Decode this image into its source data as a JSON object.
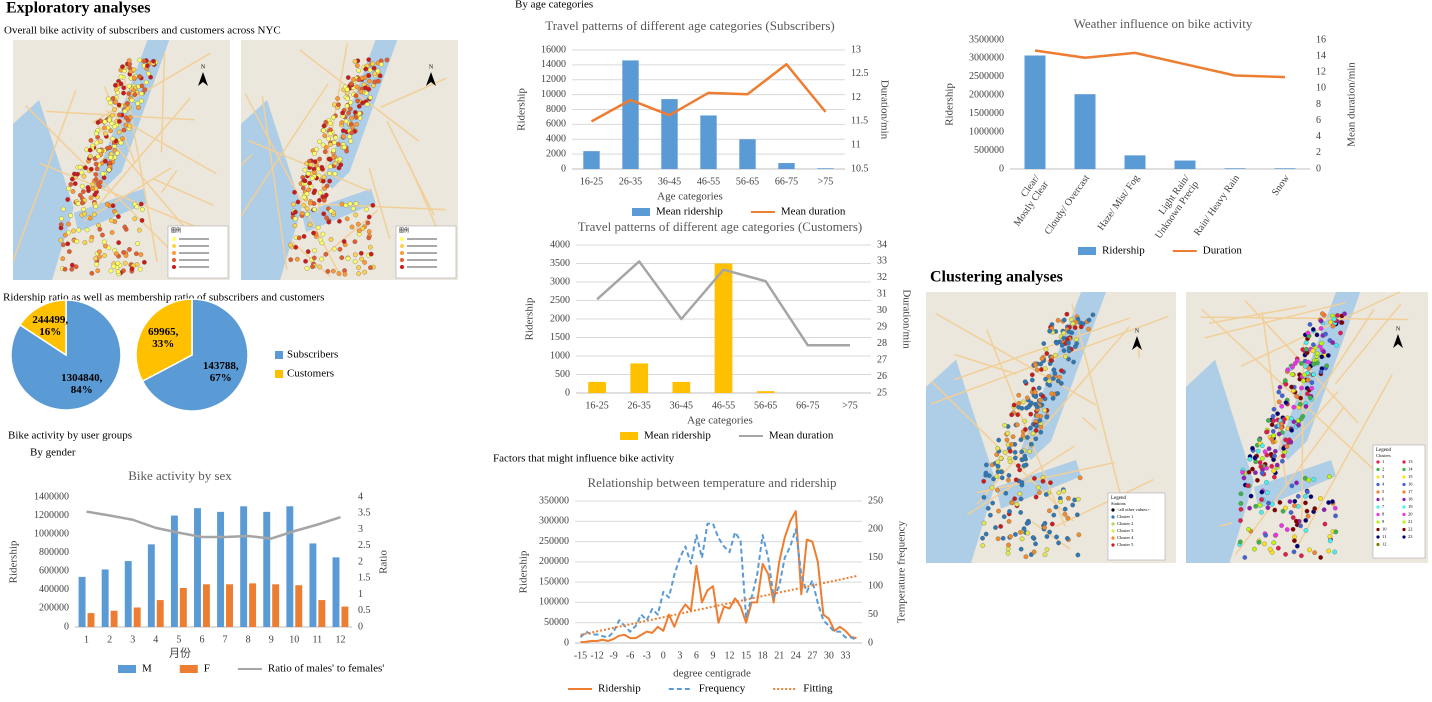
{
  "headings": {
    "exploratory": "Exploratory analyses",
    "overall": "Overall bike activity of subscribers and customers across NYC",
    "ratio": "Ridership ratio as well as membership ratio of subscribers and customers",
    "user_groups": "Bike activity by user groups",
    "by_gender": "By gender",
    "by_age": "By age categories",
    "factors": "Factors that might influence bike activity",
    "clustering": "Clustering analyses"
  },
  "maps": [
    {
      "north": "N",
      "legend_title": "图例"
    },
    {
      "north": "N",
      "legend_title": "图例"
    },
    {
      "north": "N",
      "legend_title": "Legend",
      "legend_subtitle": "Stations",
      "legend_items": [
        "<all other values>",
        "Cluster 1",
        "Cluster 2",
        "Cluster 3",
        "Cluster 4",
        "Cluster 5"
      ]
    },
    {
      "north": "N",
      "legend_title": "Legend",
      "legend_subtitle": "Clusters",
      "legend_items": [
        1,
        2,
        3,
        4,
        5,
        6,
        7,
        8,
        9,
        10,
        11,
        12,
        13,
        14,
        15,
        16,
        17,
        18,
        19,
        20,
        21,
        22,
        23
      ]
    }
  ],
  "chart_data": [
    {
      "type": "pie",
      "categories": [
        "Subscribers",
        "Customers"
      ],
      "colors": [
        "#5b9bd5",
        "#ffc000"
      ],
      "pies": [
        {
          "values": [
            1304840,
            244499
          ],
          "value_labels": [
            "1304840,\n84%",
            "244499,\n16%"
          ]
        },
        {
          "values": [
            143788,
            69965
          ],
          "value_labels": [
            "143788,\n67%",
            "69965,\n33%"
          ]
        }
      ]
    },
    {
      "type": "combo",
      "title": "Bike activity by sex",
      "x_label": "月份",
      "y_label": "Ridership",
      "y2_label": "Ratio",
      "grid": false,
      "categories": [
        "1",
        "2",
        "3",
        "4",
        "5",
        "6",
        "7",
        "8",
        "9",
        "10",
        "11",
        "12"
      ],
      "ylim": [
        0,
        1400000
      ],
      "yticks": [
        0,
        200000,
        400000,
        600000,
        800000,
        1000000,
        1200000,
        1400000
      ],
      "y2lim": [
        0,
        4
      ],
      "y2ticks": [
        0,
        0.5,
        1,
        1.5,
        2,
        2.5,
        3,
        3.5,
        4
      ],
      "series": [
        {
          "name": "M",
          "type": "bar",
          "color": "#5b9bd5",
          "values": [
            540000,
            620000,
            710000,
            890000,
            1200000,
            1280000,
            1240000,
            1300000,
            1240000,
            1300000,
            900000,
            750000
          ]
        },
        {
          "name": "F",
          "type": "bar",
          "color": "#ed7d31",
          "values": [
            150000,
            175000,
            210000,
            290000,
            420000,
            460000,
            460000,
            470000,
            460000,
            450000,
            290000,
            220000
          ]
        },
        {
          "name": "Ratio of males' to females'",
          "type": "line",
          "axis": "y2",
          "color": "#a5a5a5",
          "values": [
            3.55,
            3.43,
            3.3,
            3.05,
            2.9,
            2.77,
            2.77,
            2.8,
            2.72,
            2.95,
            3.15,
            3.38
          ]
        }
      ]
    },
    {
      "type": "combo",
      "title": "Travel patterns of different age categories (Subscribers)",
      "x_label": "Age categories",
      "y_label": "Ridership",
      "y2_label": "Duration/min",
      "grid": true,
      "categories": [
        "16-25",
        "26-35",
        "36-45",
        "46-55",
        "56-65",
        "66-75",
        ">75"
      ],
      "ylim": [
        0,
        16000
      ],
      "yticks": [
        0,
        2000,
        4000,
        6000,
        8000,
        10000,
        12000,
        14000,
        16000
      ],
      "y2lim": [
        10.5,
        13
      ],
      "y2ticks": [
        10.5,
        11,
        11.5,
        12,
        12.5,
        13
      ],
      "series": [
        {
          "name": "Mean ridership",
          "type": "bar",
          "color": "#5b9bd5",
          "values": [
            2400,
            14600,
            9400,
            7200,
            4000,
            800,
            100
          ]
        },
        {
          "name": "Mean duration",
          "type": "line",
          "axis": "y2",
          "color": "#ed7d31",
          "values": [
            11.5,
            11.95,
            11.63,
            12.1,
            12.07,
            12.7,
            11.7
          ]
        }
      ]
    },
    {
      "type": "combo",
      "title": "Travel patterns of different age categories (Customers)",
      "x_label": "Age categories",
      "y_label": "Ridership",
      "y2_label": "Duration/min",
      "grid": true,
      "categories": [
        "16-25",
        "26-35",
        "36-45",
        "46-55",
        "56-65",
        "66-75",
        ">75"
      ],
      "ylim": [
        0,
        4000
      ],
      "yticks": [
        0,
        500,
        1000,
        1500,
        2000,
        2500,
        3000,
        3500,
        4000
      ],
      "y2lim": [
        25,
        34
      ],
      "y2ticks": [
        25,
        26,
        27,
        28,
        29,
        30,
        31,
        32,
        33,
        34
      ],
      "series": [
        {
          "name": "Mean ridership",
          "type": "bar",
          "color": "#ffc000",
          "values": [
            300,
            800,
            300,
            3500,
            50,
            0,
            0
          ]
        },
        {
          "name": "Mean duration",
          "type": "line",
          "axis": "y2",
          "color": "#a5a5a5",
          "values": [
            30.7,
            33,
            29.5,
            32.5,
            31.8,
            27.9,
            27.9
          ]
        }
      ]
    },
    {
      "type": "combo",
      "title": "Weather influence on bike activity",
      "y_label": "Ridership",
      "y2_label": "Mean duration/min",
      "grid": false,
      "categories": [
        "Clear/\nMostly Clear",
        "Cloudy/ Overcast",
        "Haze/ Mist/ Fog",
        "Light Rain/\nUnknown Precip",
        "Rain/ Heavy Rain",
        "Snow"
      ],
      "ylim": [
        0,
        3500000
      ],
      "yticks": [
        0,
        500000,
        1000000,
        1500000,
        2000000,
        2500000,
        3000000,
        3500000
      ],
      "y2lim": [
        0,
        16
      ],
      "y2ticks": [
        0,
        2,
        4,
        6,
        8,
        10,
        12,
        14,
        16
      ],
      "series": [
        {
          "name": "Ridership",
          "type": "bar",
          "color": "#5b9bd5",
          "values": [
            3080000,
            2030000,
            370000,
            230000,
            20000,
            20000
          ]
        },
        {
          "name": "Duration",
          "type": "line",
          "axis": "y2",
          "color": "#ed7d31",
          "values": [
            14.7,
            13.8,
            14.4,
            13,
            11.6,
            11.4
          ]
        }
      ]
    },
    {
      "type": "line",
      "title": "Relationship between temperature and ridership",
      "x_label": "degree centigrade",
      "y_label": "Ridership",
      "y2_label": "Temperature frequency",
      "grid": true,
      "x": [
        -15,
        -14,
        -13,
        -12,
        -11,
        -10,
        -9,
        -8,
        -7,
        -6,
        -5,
        -4,
        -3,
        -2,
        -1,
        0,
        1,
        2,
        3,
        4,
        5,
        6,
        7,
        8,
        9,
        10,
        11,
        12,
        13,
        14,
        15,
        16,
        17,
        18,
        19,
        20,
        21,
        22,
        23,
        24,
        25,
        26,
        27,
        28,
        29,
        30,
        31,
        32,
        33,
        34,
        35
      ],
      "xlim": [
        -16,
        36
      ],
      "xticks": [
        -15,
        -12,
        -9,
        -6,
        -3,
        0,
        3,
        6,
        9,
        12,
        15,
        18,
        21,
        24,
        27,
        30,
        33
      ],
      "ylim": [
        0,
        350000
      ],
      "yticks": [
        0,
        50000,
        100000,
        150000,
        200000,
        250000,
        300000,
        350000
      ],
      "y2lim": [
        0,
        250
      ],
      "y2ticks": [
        0,
        50,
        100,
        150,
        200,
        250
      ],
      "series": [
        {
          "name": "Ridership",
          "color": "#ed7d31",
          "dash": "solid",
          "values": [
            2000,
            3000,
            5000,
            5000,
            8000,
            5000,
            10000,
            18000,
            20000,
            12000,
            12000,
            20000,
            28000,
            25000,
            40000,
            30000,
            70000,
            40000,
            75000,
            95000,
            80000,
            190000,
            100000,
            130000,
            140000,
            50000,
            90000,
            85000,
            110000,
            90000,
            50000,
            100000,
            100000,
            195000,
            170000,
            100000,
            200000,
            260000,
            300000,
            325000,
            120000,
            255000,
            250000,
            200000,
            70000,
            60000,
            30000,
            40000,
            30000,
            15000,
            12000
          ]
        },
        {
          "name": "Frequency",
          "color": "#5b9bd5",
          "dash": "dashed",
          "axis": "y2",
          "values": [
            10,
            20,
            15,
            15,
            12,
            10,
            20,
            40,
            30,
            20,
            30,
            50,
            40,
            60,
            50,
            90,
            80,
            120,
            150,
            170,
            140,
            190,
            150,
            210,
            210,
            185,
            170,
            160,
            195,
            180,
            45,
            80,
            120,
            190,
            150,
            80,
            100,
            150,
            170,
            200,
            120,
            90,
            110,
            70,
            40,
            30,
            20,
            20,
            10,
            10,
            5
          ]
        },
        {
          "name": "Fitting",
          "color": "#ed7d31",
          "dash": "dotted",
          "x": [
            -15,
            35
          ],
          "values": [
            20000,
            165000
          ]
        }
      ]
    }
  ]
}
